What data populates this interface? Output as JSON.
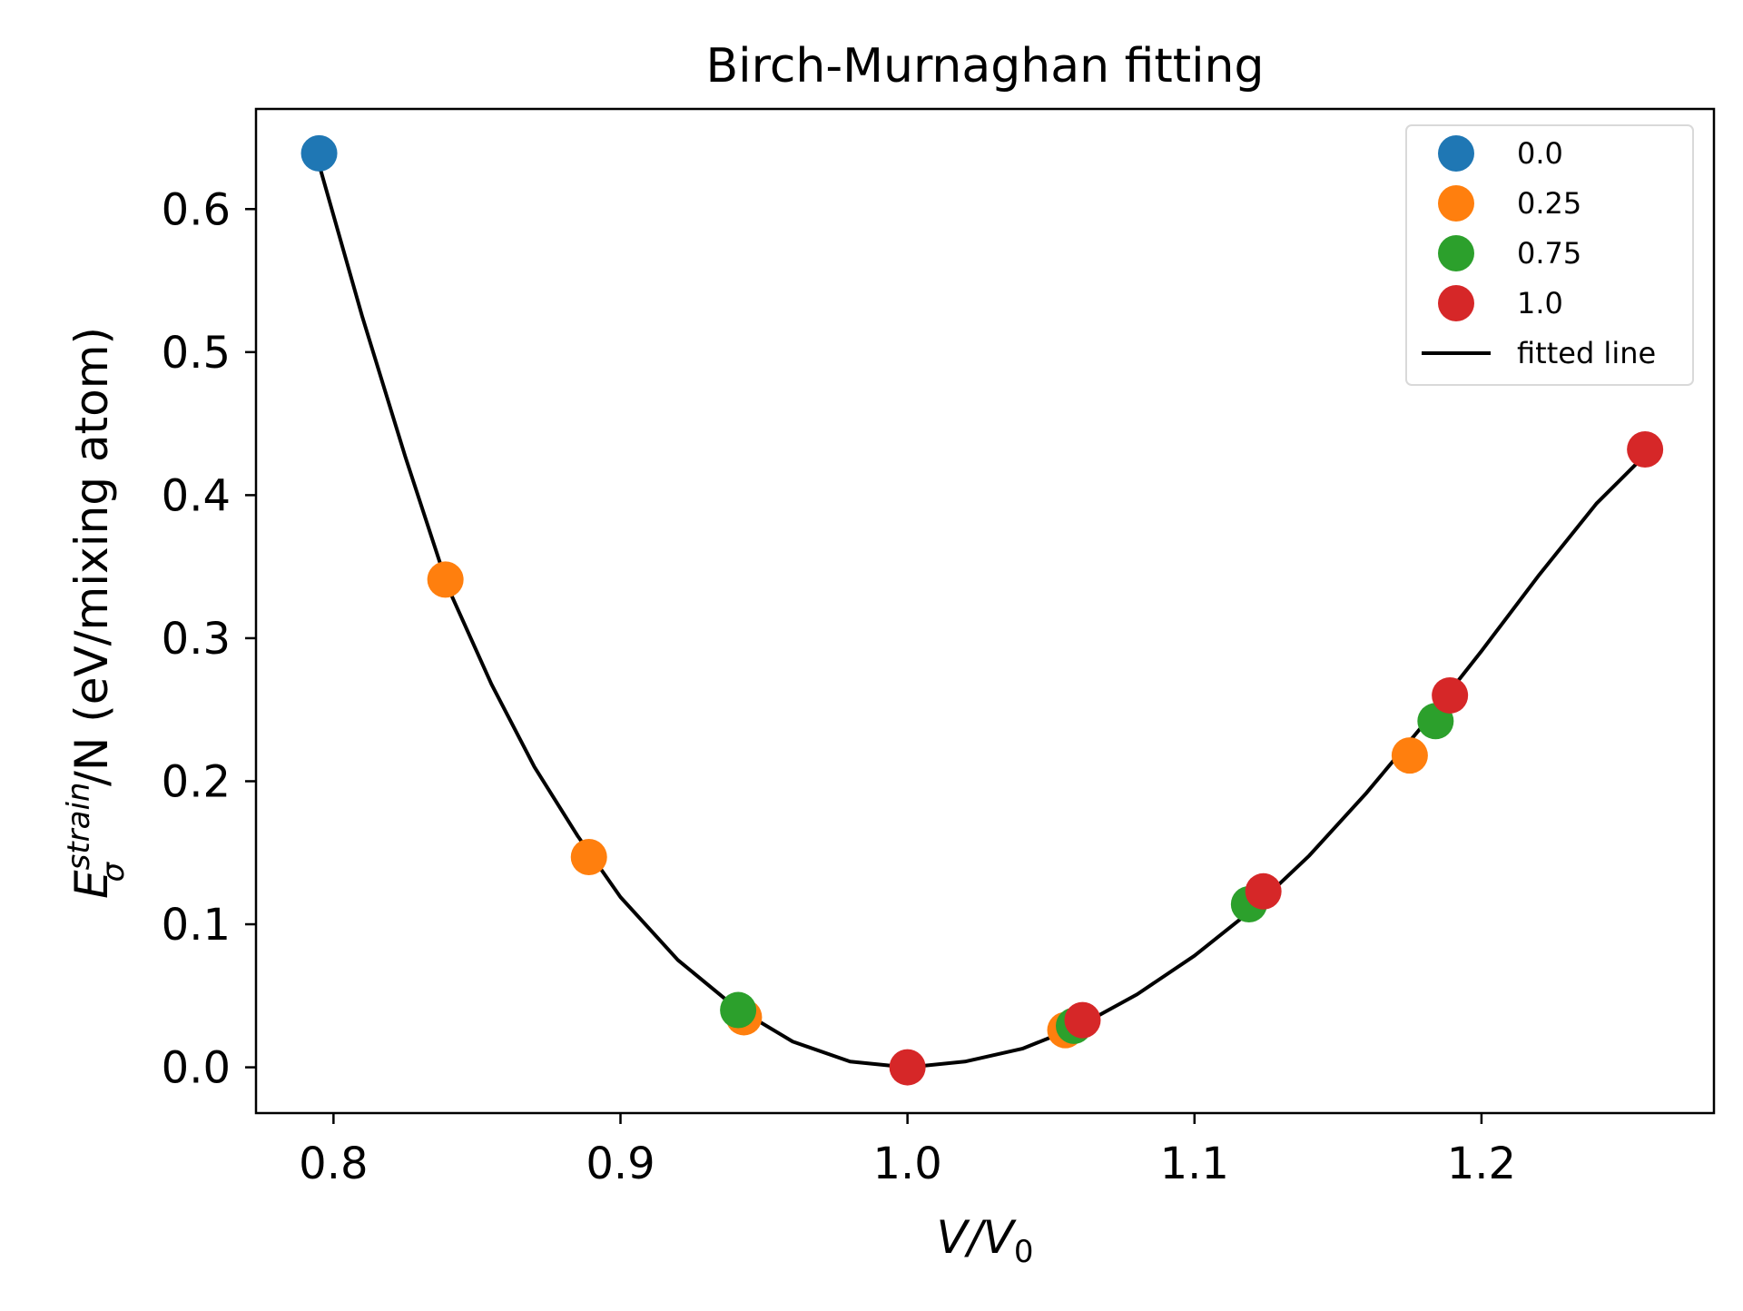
{
  "chart_data": {
    "type": "scatter",
    "title": "Birch-Murnaghan fitting",
    "xlabel": {
      "main": "V/V",
      "sub": "0"
    },
    "ylabel": {
      "main": "E",
      "sup": "strain",
      "sub": "σ",
      "rest": "/N (eV/mixing atom)"
    },
    "xlim": [
      0.773,
      1.281
    ],
    "ylim": [
      -0.032,
      0.67
    ],
    "xticks": [
      0.8,
      0.9,
      1.0,
      1.1,
      1.2
    ],
    "xtick_labels": [
      "0.8",
      "0.9",
      "1.0",
      "1.1",
      "1.2"
    ],
    "yticks": [
      0.0,
      0.1,
      0.2,
      0.3,
      0.4,
      0.5,
      0.6
    ],
    "ytick_labels": [
      "0.0",
      "0.1",
      "0.2",
      "0.3",
      "0.4",
      "0.5",
      "0.6"
    ],
    "grid": false,
    "legend_position": "top-right",
    "series": [
      {
        "name": "0.0",
        "color": "#1f77b4",
        "points": [
          {
            "x": 0.795,
            "y": 0.639
          }
        ]
      },
      {
        "name": "0.25",
        "color": "#ff7f0e",
        "points": [
          {
            "x": 0.839,
            "y": 0.341
          },
          {
            "x": 0.889,
            "y": 0.147
          },
          {
            "x": 0.943,
            "y": 0.035
          },
          {
            "x": 1.055,
            "y": 0.026
          },
          {
            "x": 1.175,
            "y": 0.218
          }
        ]
      },
      {
        "name": "0.75",
        "color": "#2ca02c",
        "points": [
          {
            "x": 0.941,
            "y": 0.04
          },
          {
            "x": 1.058,
            "y": 0.029
          },
          {
            "x": 1.119,
            "y": 0.114
          },
          {
            "x": 1.184,
            "y": 0.242
          }
        ]
      },
      {
        "name": "1.0",
        "color": "#d62728",
        "points": [
          {
            "x": 1.0,
            "y": 0.0
          },
          {
            "x": 1.061,
            "y": 0.033
          },
          {
            "x": 1.124,
            "y": 0.123
          },
          {
            "x": 1.189,
            "y": 0.26
          },
          {
            "x": 1.257,
            "y": 0.432
          }
        ]
      }
    ],
    "fitted_line": {
      "name": "fitted line",
      "color": "#000000",
      "x": [
        0.795,
        0.81,
        0.825,
        0.84,
        0.855,
        0.87,
        0.885,
        0.9,
        0.92,
        0.94,
        0.96,
        0.98,
        1.0,
        1.02,
        1.04,
        1.06,
        1.08,
        1.1,
        1.12,
        1.14,
        1.16,
        1.18,
        1.2,
        1.22,
        1.24,
        1.257
      ],
      "y": [
        0.631,
        0.525,
        0.427,
        0.335,
        0.268,
        0.21,
        0.162,
        0.119,
        0.075,
        0.042,
        0.018,
        0.004,
        0.0,
        0.004,
        0.013,
        0.029,
        0.051,
        0.078,
        0.11,
        0.148,
        0.192,
        0.24,
        0.291,
        0.344,
        0.394,
        0.428
      ]
    }
  }
}
